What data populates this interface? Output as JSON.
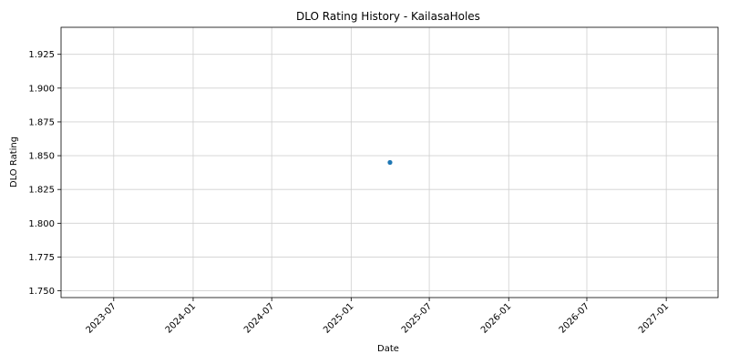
{
  "chart_data": {
    "type": "scatter",
    "title": "DLO Rating History - KailasaHoles",
    "xlabel": "Date",
    "ylabel": "DLO Rating",
    "x_type": "date",
    "x_ticks": [
      "2023-07",
      "2024-01",
      "2024-07",
      "2025-01",
      "2025-07",
      "2026-01",
      "2026-07",
      "2027-01"
    ],
    "x_range": [
      "2023-03-01",
      "2027-05-01"
    ],
    "y_ticks": [
      "1.750",
      "1.775",
      "1.800",
      "1.825",
      "1.850",
      "1.875",
      "1.900",
      "1.925"
    ],
    "ylim": [
      1.745,
      1.945
    ],
    "grid": true,
    "points": [
      {
        "x": "2025-04-01",
        "y": 1.845
      }
    ],
    "marker_color": "#1f77b4"
  }
}
